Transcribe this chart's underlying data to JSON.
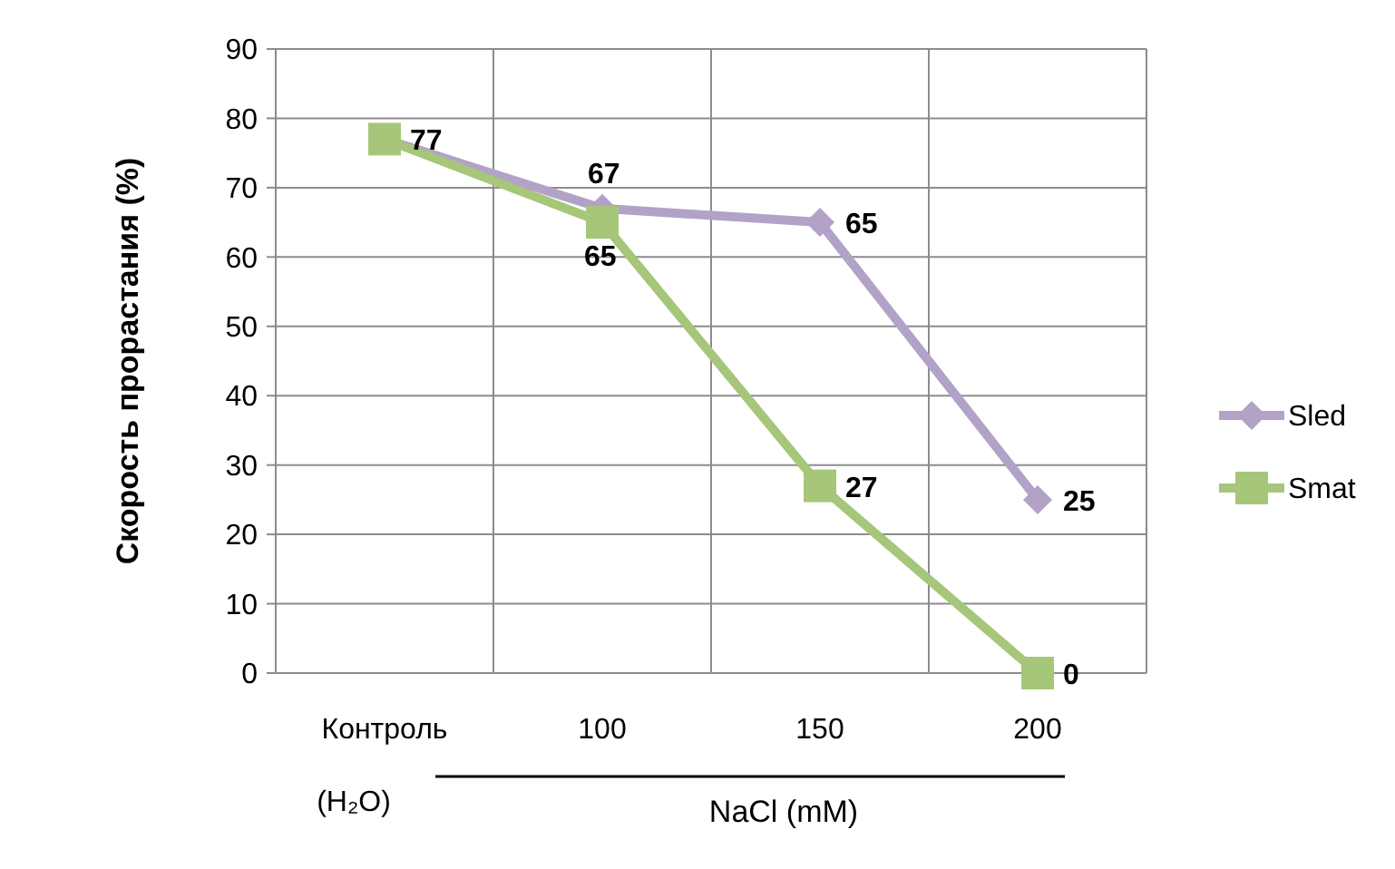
{
  "chart_data": {
    "type": "line",
    "ylabel": "Скорость прорастания (%)",
    "xlabel": "NaCl (mM)",
    "categories": [
      "Контроль",
      "100",
      "150",
      "200"
    ],
    "series": [
      {
        "name": "Sled",
        "color": "#b3a2c7",
        "marker": "diamond",
        "values": [
          77,
          67,
          65,
          25
        ],
        "value_labels": [
          "77",
          "67",
          "65",
          "25"
        ]
      },
      {
        "name": "Smat",
        "color": "#a6c67a",
        "marker": "square",
        "values": [
          77,
          65,
          27,
          0
        ],
        "value_labels": [
          null,
          "65",
          "27",
          "0"
        ]
      }
    ],
    "ylim": [
      0,
      90
    ],
    "yticks": [
      0,
      10,
      20,
      30,
      40,
      50,
      60,
      70,
      80,
      90
    ],
    "grid": true,
    "legend": "right",
    "line_style": "solid",
    "annotations": [
      "(H₂O)"
    ]
  }
}
